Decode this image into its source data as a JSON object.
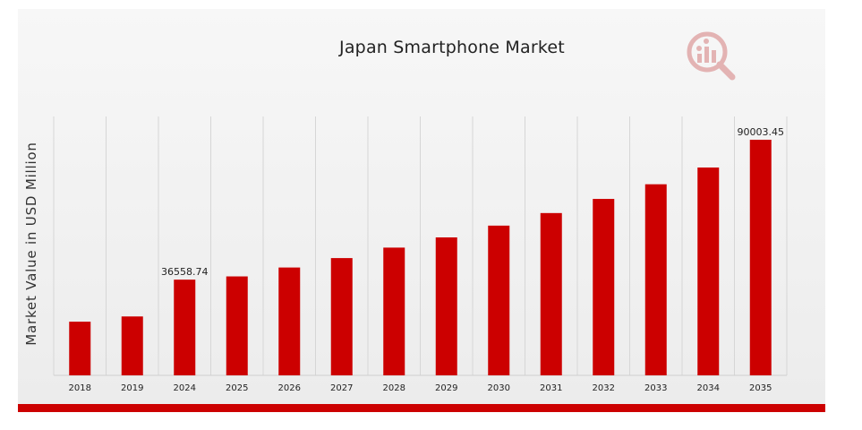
{
  "chart_data": {
    "type": "bar",
    "title": "Japan Smartphone Market",
    "ylabel": "Market Value in USD Million",
    "xlabel": "",
    "categories": [
      "2018",
      "2019",
      "2024",
      "2025",
      "2026",
      "2027",
      "2028",
      "2029",
      "2030",
      "2031",
      "2032",
      "2033",
      "2034",
      "2035"
    ],
    "values": [
      20500,
      22500,
      36558.74,
      37800,
      41200,
      44800,
      48800,
      52700,
      57200,
      62000,
      67400,
      73000,
      79400,
      90003.45
    ],
    "data_labels": {
      "2024": "36558.74",
      "2035": "90003.45"
    },
    "ylim": [
      0,
      90003.45
    ],
    "bar_color": "#cc0000",
    "grid": "vertical",
    "legend": "none"
  },
  "colors": {
    "accent": "#cc0000",
    "logo": "#d9a0a0"
  },
  "icons": {
    "logo": "market-research-logo-icon"
  }
}
